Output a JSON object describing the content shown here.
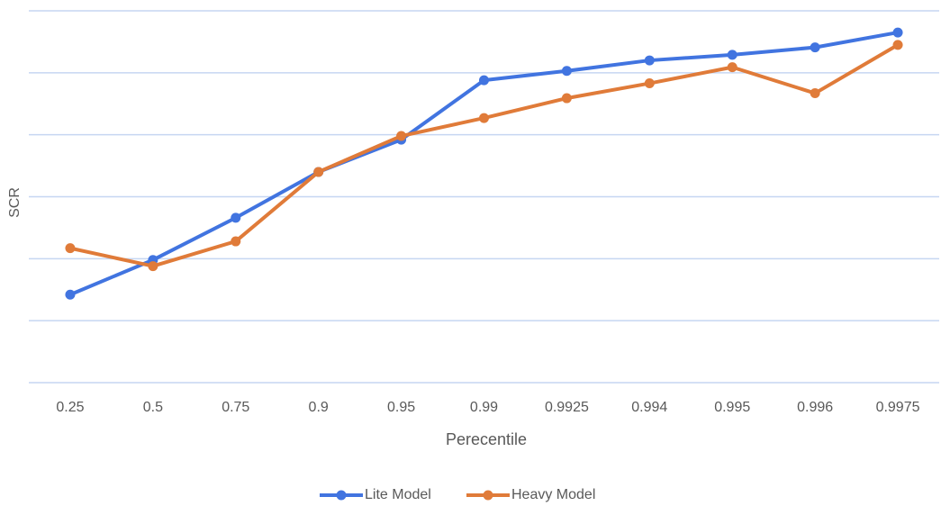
{
  "chart_data": {
    "type": "line",
    "x_label": "Perecentile",
    "y_label": "SCR",
    "categories": [
      "0.25",
      "0.5",
      "0.75",
      "0.9",
      "0.95",
      "0.99",
      "0.9925",
      "0.994",
      "0.995",
      "0.996",
      "0.9975"
    ],
    "series": [
      {
        "name": "Lite Model",
        "color": "#4174e0",
        "values": [
          1.42,
          1.98,
          2.66,
          3.4,
          3.92,
          4.88,
          5.03,
          5.2,
          5.29,
          5.41,
          5.65
        ]
      },
      {
        "name": "Heavy Model",
        "color": "#e07b39",
        "values": [
          2.17,
          1.88,
          2.28,
          3.4,
          3.98,
          4.27,
          4.59,
          4.83,
          5.09,
          4.67,
          5.45
        ]
      }
    ],
    "ylim": [
      0,
      6
    ],
    "yticks": [
      0,
      1,
      2,
      3,
      4,
      5,
      6
    ],
    "show_ytick_labels": false,
    "grid": true,
    "legend": "bottom"
  }
}
